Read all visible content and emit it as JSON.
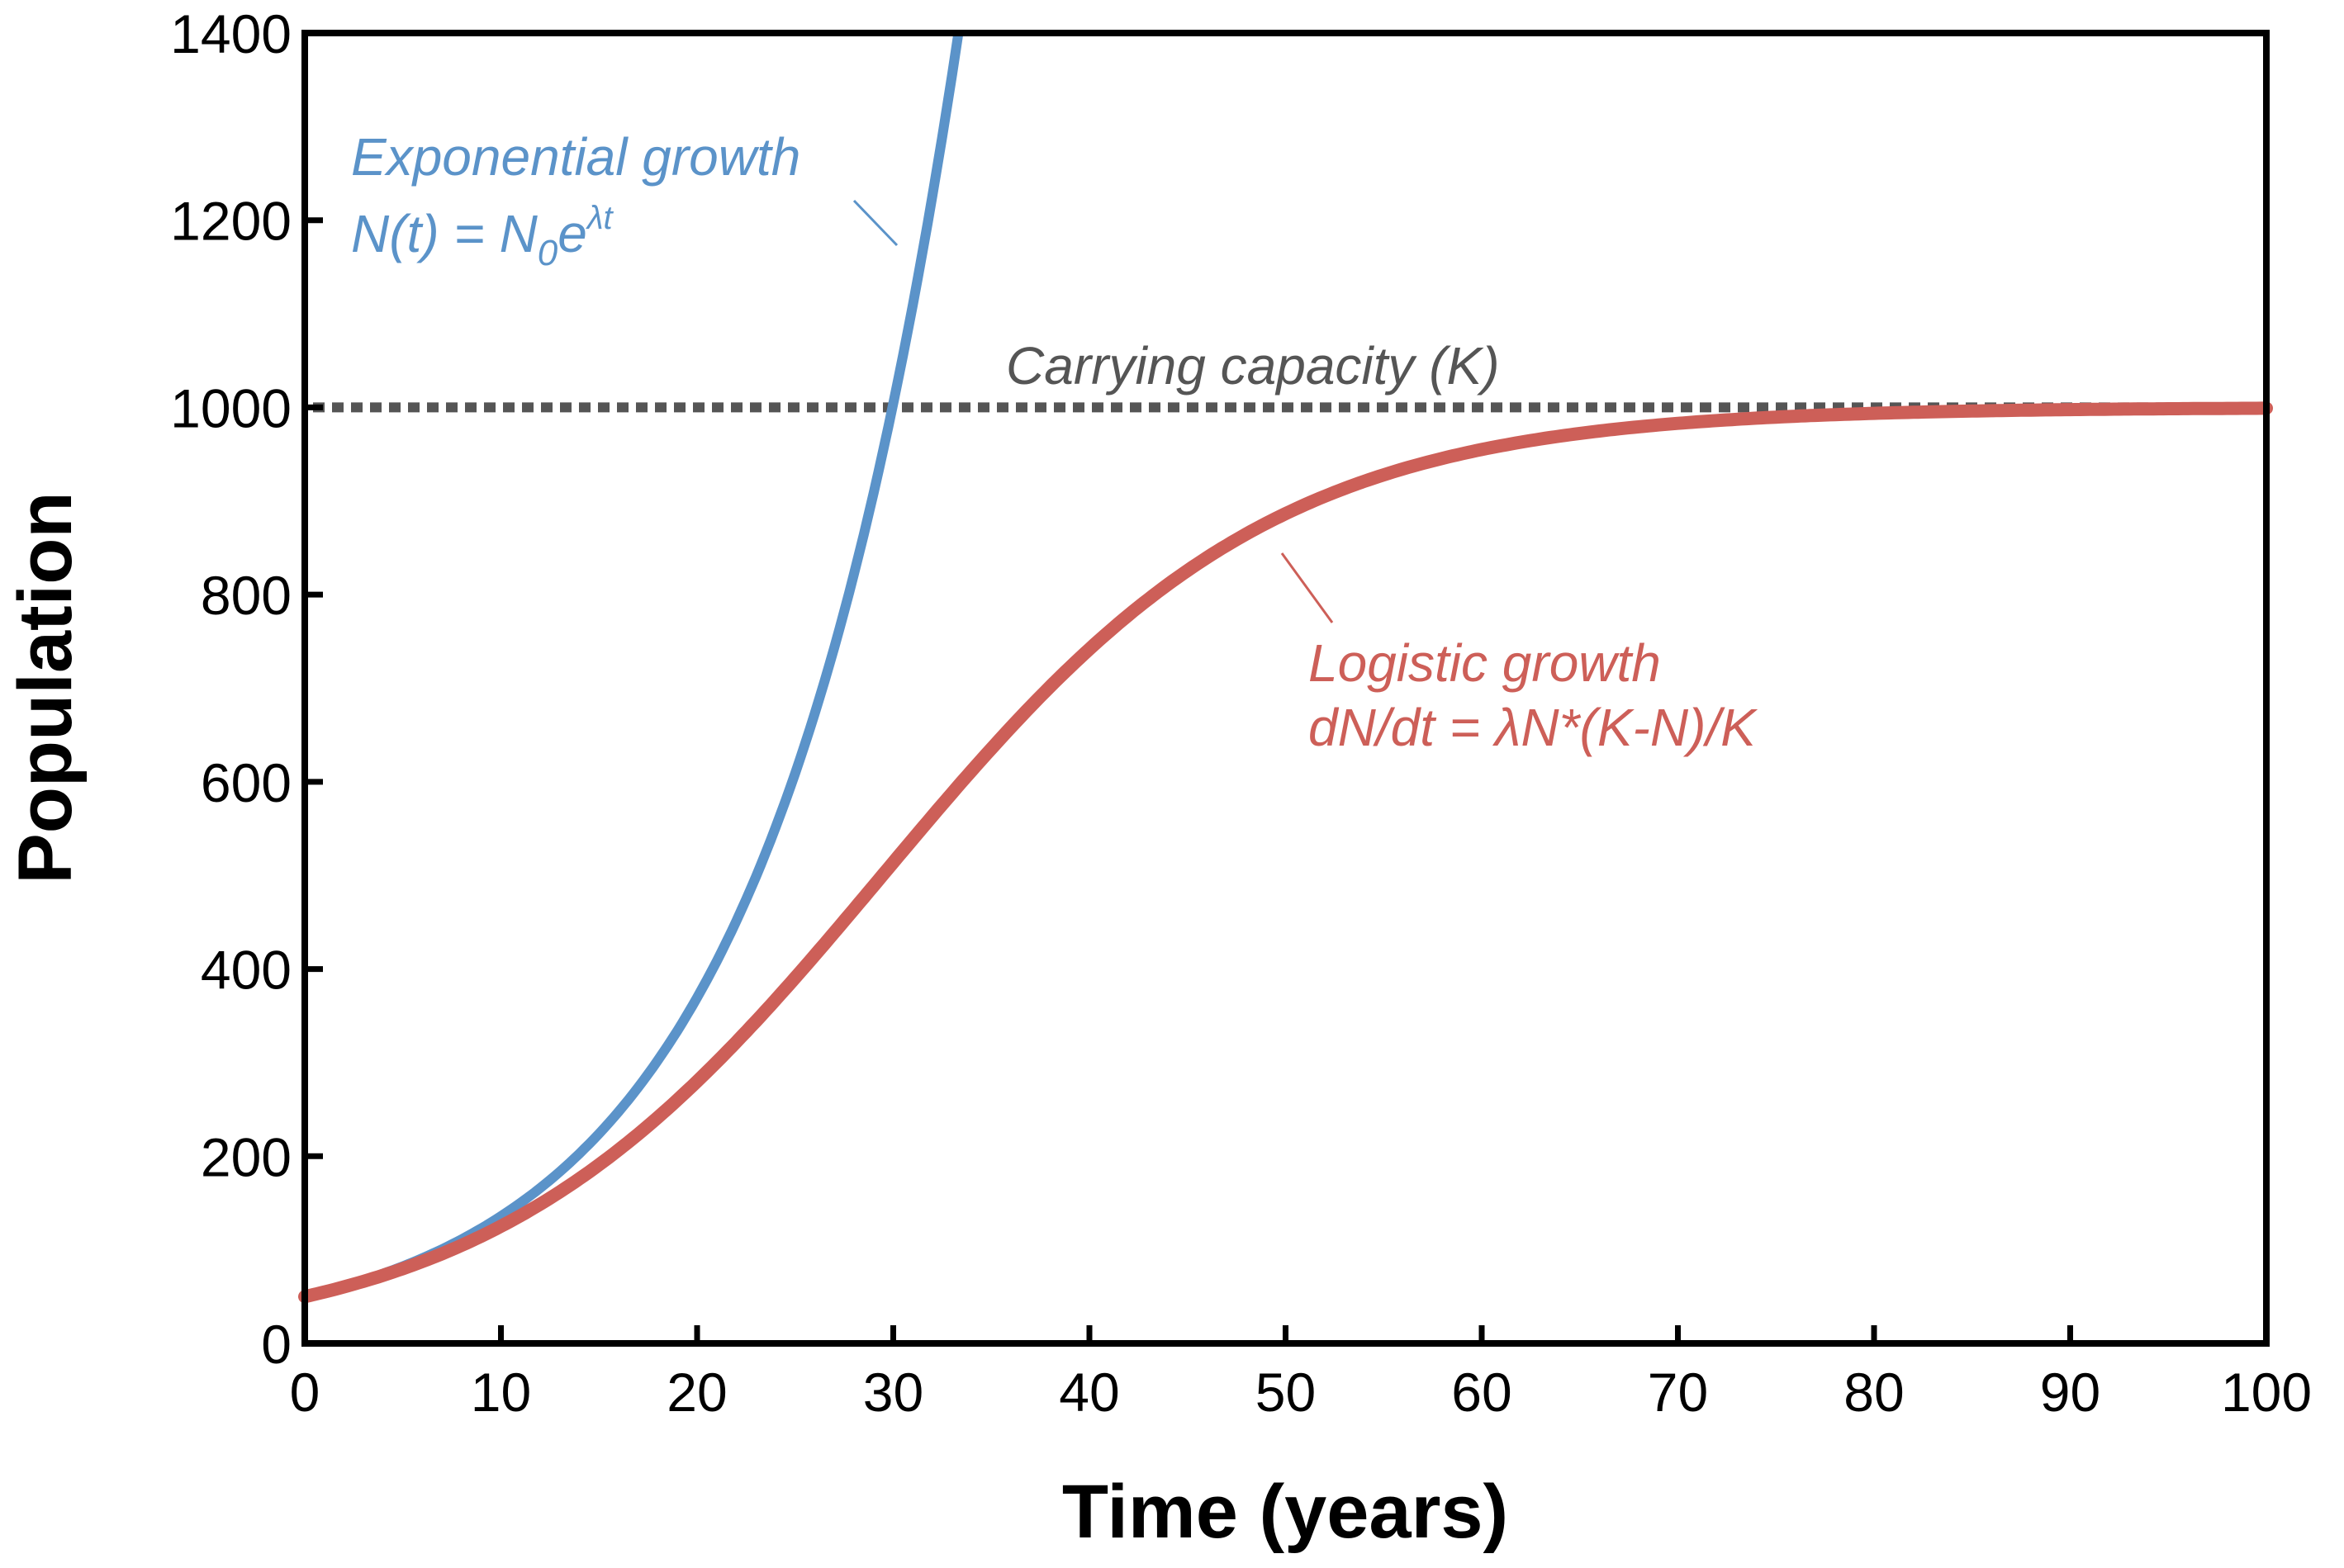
{
  "chart_data": {
    "type": "line",
    "title": "",
    "xlabel": "Time (years)",
    "ylabel": "Population",
    "xlim": [
      0,
      100
    ],
    "ylim": [
      0,
      1400
    ],
    "x_ticks": [
      0,
      10,
      20,
      30,
      40,
      50,
      60,
      70,
      80,
      90,
      100
    ],
    "y_ticks": [
      0,
      200,
      400,
      600,
      800,
      1000,
      1200,
      1400
    ],
    "grid": false,
    "legend": null,
    "series": [
      {
        "name": "Exponential growth",
        "formula": "N(t) = N0 e^(λt)",
        "color": "#5b93c9",
        "x": [
          0,
          5,
          10,
          15,
          20,
          25,
          30,
          33.3
        ],
        "values": [
          50,
          82,
          136,
          224,
          369,
          609,
          1004,
          1400
        ]
      },
      {
        "name": "Logistic growth",
        "formula": "dN/dt = λN*(K-N)/K",
        "color": "#cd5f58",
        "x": [
          0,
          5,
          10,
          15,
          20,
          25,
          30,
          35,
          40,
          45,
          50,
          55,
          60,
          65,
          70,
          75,
          80,
          85,
          90,
          95,
          100
        ],
        "values": [
          50,
          80,
          125,
          191,
          280,
          390,
          514,
          636,
          742,
          825,
          886,
          927,
          955,
          973,
          983,
          990,
          994,
          996,
          998,
          999,
          999
        ]
      },
      {
        "name": "Carrying capacity (K)",
        "color": "#555555",
        "style": "dotted",
        "x": [
          0,
          100
        ],
        "values": [
          1000,
          1000
        ]
      }
    ],
    "annotations": [
      {
        "text": "Exponential growth",
        "line2": "N(t) = N0e^λt",
        "color": "#5b93c9"
      },
      {
        "text": "Carrying capacity (K)",
        "color": "#555555"
      },
      {
        "text": "Logistic growth",
        "line2": "dN/dt = λN*(K-N)/K",
        "color": "#cd5f58"
      }
    ]
  },
  "labels": {
    "xlabel": "Time (years)",
    "ylabel": "Population",
    "x_ticks": [
      "0",
      "10",
      "20",
      "30",
      "40",
      "50",
      "60",
      "70",
      "80",
      "90",
      "100"
    ],
    "y_ticks": [
      "0",
      "200",
      "400",
      "600",
      "800",
      "1000",
      "1200",
      "1400"
    ],
    "exp_title": "Exponential growth",
    "exp_formula_main": "N(t) = N",
    "exp_formula_sub": "0",
    "exp_formula_e": "e",
    "exp_formula_sup": "λt",
    "cap_label": "Carrying capacity (K)",
    "log_title": "Logistic growth",
    "log_formula": "dN/dt = λN*(K-N)/K"
  },
  "colors": {
    "exponential": "#5b93c9",
    "logistic": "#cd5f58",
    "capacity": "#555555",
    "axis": "#000000"
  }
}
